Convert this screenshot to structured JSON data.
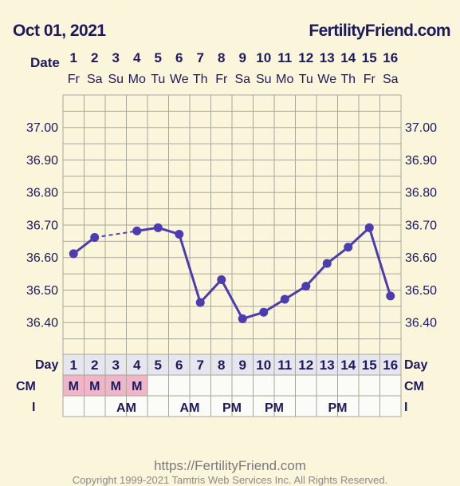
{
  "header": {
    "date": "Oct 01, 2021",
    "brand": "FertilityFriend.com"
  },
  "date_row_label": "Date",
  "day_row_label": "Day",
  "cm_row_label": "CM",
  "i_row_label": "I",
  "chart_data": {
    "type": "line",
    "x": [
      1,
      2,
      3,
      4,
      5,
      6,
      7,
      8,
      9,
      10,
      11,
      12,
      13,
      14,
      15,
      16
    ],
    "weekdays": [
      "Fr",
      "Sa",
      "Su",
      "Mo",
      "Tu",
      "We",
      "Th",
      "Fr",
      "Sa",
      "Su",
      "Mo",
      "Tu",
      "We",
      "Th",
      "Fr",
      "Sa"
    ],
    "series": [
      {
        "values": [
          36.61,
          36.66,
          null,
          36.68,
          36.69,
          36.67,
          36.46,
          36.53,
          36.41,
          36.43,
          36.47,
          36.51,
          36.58,
          36.63,
          36.69,
          36.48
        ]
      }
    ],
    "dashed_segments": [
      [
        2,
        4
      ]
    ],
    "yticks": [
      "37.00",
      "36.90",
      "36.80",
      "36.70",
      "36.60",
      "36.50",
      "36.40"
    ],
    "ylim": [
      36.35,
      37.05
    ],
    "cm": [
      "M",
      "M",
      "M",
      "M",
      "",
      "",
      "",
      "",
      "",
      "",
      "",
      "",
      "",
      "",
      "",
      ""
    ],
    "intercourse": [
      "",
      "",
      "AM",
      "",
      "",
      "AM",
      "",
      "PM",
      "",
      "PM",
      "",
      "",
      "PM",
      "",
      "",
      ""
    ],
    "line_color": "#4b3cb0",
    "cm_color": "#f0b6c8"
  },
  "footer": {
    "url": "https://FertilityFriend.com",
    "copyright": "Copyright 1999-2021 Tamtris Web Services Inc. All Rights Reserved."
  }
}
